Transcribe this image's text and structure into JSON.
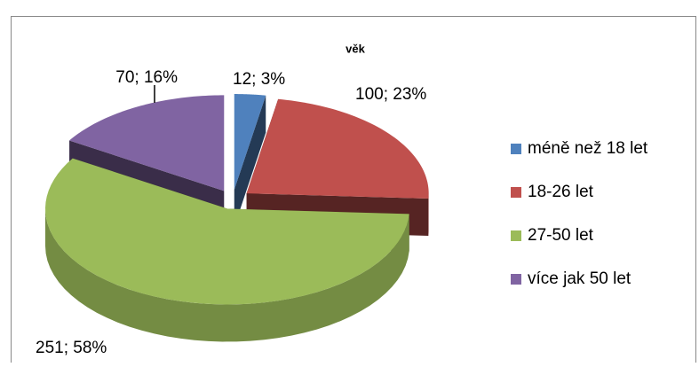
{
  "chart_data": {
    "type": "pie",
    "title": "věk",
    "categories": [
      "méně než 18 let",
      "18-26 let",
      "27-50 let",
      "více jak 50 let"
    ],
    "values": [
      12,
      100,
      251,
      70
    ],
    "value_labels": [
      "12; 3%",
      "100; 23%",
      "251; 58%",
      "70; 16%"
    ],
    "colors": [
      "#4f81bd",
      "#c0504d",
      "#9bbb59",
      "#8064a2"
    ],
    "legend": "right"
  }
}
